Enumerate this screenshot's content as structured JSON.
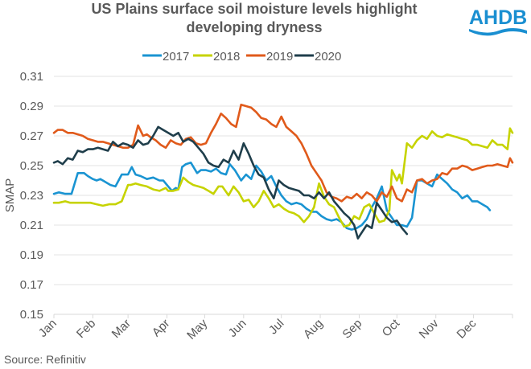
{
  "chart_data": {
    "type": "line",
    "title": [
      "US Plains surface soil moisture levels highlight",
      "developing dryness"
    ],
    "ylabel": "SMAP",
    "xlabel": "",
    "ylim": [
      0.15,
      0.31
    ],
    "yticks": [
      "0.31",
      "0.29",
      "0.27",
      "0.25",
      "0.23",
      "0.21",
      "0.19",
      "0.17",
      "0.15"
    ],
    "ytick_values": [
      0.31,
      0.29,
      0.27,
      0.25,
      0.23,
      0.21,
      0.19,
      0.17,
      0.15
    ],
    "x_unit": "day of year",
    "xlim": [
      1,
      366
    ],
    "categories": [
      "Jan",
      "Feb",
      "Mar",
      "Apr",
      "May",
      "Jun",
      "Jul",
      "Aug",
      "Sep",
      "Oct",
      "Nov",
      "Dec"
    ],
    "month_starts": [
      1,
      32,
      60,
      91,
      121,
      152,
      182,
      213,
      244,
      274,
      305,
      335
    ],
    "grid": true,
    "legend_position": "top",
    "series": [
      {
        "name": "2017",
        "color": "#1a94d2",
        "x": [
          1,
          5,
          10,
          15,
          20,
          25,
          28,
          32,
          35,
          38,
          42,
          46,
          50,
          55,
          60,
          63,
          66,
          70,
          75,
          80,
          85,
          88,
          92,
          95,
          98,
          100,
          103,
          106,
          110,
          115,
          118,
          122,
          126,
          130,
          134,
          138,
          141,
          145,
          150,
          154,
          158,
          162,
          166,
          170,
          174,
          178,
          182,
          186,
          190,
          194,
          198,
          202,
          206,
          210,
          214,
          218,
          222,
          226,
          230,
          234,
          238,
          242,
          246,
          250,
          254,
          258,
          262,
          266,
          270,
          274,
          278,
          282,
          286,
          290,
          294,
          298,
          302,
          306,
          310,
          314,
          318,
          322,
          326,
          330,
          334,
          338,
          342,
          346,
          348
        ],
        "y": [
          0.231,
          0.232,
          0.231,
          0.231,
          0.245,
          0.245,
          0.243,
          0.241,
          0.24,
          0.241,
          0.239,
          0.237,
          0.236,
          0.244,
          0.244,
          0.249,
          0.244,
          0.243,
          0.241,
          0.242,
          0.24,
          0.24,
          0.236,
          0.233,
          0.235,
          0.234,
          0.249,
          0.251,
          0.252,
          0.245,
          0.247,
          0.247,
          0.246,
          0.248,
          0.245,
          0.244,
          0.251,
          0.247,
          0.24,
          0.244,
          0.241,
          0.25,
          0.246,
          0.24,
          0.243,
          0.236,
          0.23,
          0.226,
          0.224,
          0.225,
          0.224,
          0.221,
          0.219,
          0.219,
          0.216,
          0.214,
          0.213,
          0.214,
          0.212,
          0.208,
          0.207,
          0.208,
          0.21,
          0.214,
          0.222,
          0.228,
          0.236,
          0.22,
          0.215,
          0.21,
          0.21,
          0.209,
          0.215,
          0.24,
          0.24,
          0.238,
          0.236,
          0.244,
          0.241,
          0.238,
          0.234,
          0.232,
          0.228,
          0.23,
          0.226,
          0.226,
          0.224,
          0.222,
          0.22
        ]
      },
      {
        "name": "2018",
        "color": "#c6d300",
        "x": [
          1,
          5,
          10,
          14,
          20,
          25,
          30,
          35,
          40,
          45,
          50,
          55,
          60,
          62,
          66,
          70,
          75,
          80,
          85,
          90,
          92,
          96,
          100,
          104,
          108,
          112,
          116,
          120,
          124,
          128,
          132,
          135,
          140,
          144,
          148,
          152,
          156,
          160,
          164,
          168,
          172,
          176,
          180,
          184,
          188,
          192,
          196,
          200,
          204,
          208,
          212,
          216,
          220,
          224,
          228,
          232,
          236,
          240,
          244,
          248,
          252,
          256,
          260,
          264,
          268,
          270,
          274,
          276,
          278,
          282,
          286,
          290,
          294,
          298,
          302,
          306,
          310,
          314,
          318,
          322,
          326,
          330,
          334,
          338,
          342,
          346,
          350,
          354,
          358,
          362,
          364,
          366
        ],
        "y": [
          0.225,
          0.225,
          0.226,
          0.225,
          0.225,
          0.225,
          0.225,
          0.224,
          0.223,
          0.224,
          0.224,
          0.226,
          0.237,
          0.237,
          0.238,
          0.237,
          0.236,
          0.234,
          0.233,
          0.235,
          0.233,
          0.233,
          0.234,
          0.242,
          0.239,
          0.237,
          0.236,
          0.235,
          0.233,
          0.231,
          0.236,
          0.236,
          0.23,
          0.236,
          0.232,
          0.226,
          0.227,
          0.222,
          0.226,
          0.233,
          0.228,
          0.222,
          0.224,
          0.221,
          0.219,
          0.218,
          0.216,
          0.212,
          0.216,
          0.222,
          0.238,
          0.229,
          0.224,
          0.222,
          0.215,
          0.209,
          0.21,
          0.216,
          0.214,
          0.222,
          0.224,
          0.218,
          0.212,
          0.213,
          0.22,
          0.247,
          0.24,
          0.244,
          0.238,
          0.265,
          0.262,
          0.267,
          0.27,
          0.268,
          0.273,
          0.27,
          0.269,
          0.271,
          0.27,
          0.269,
          0.268,
          0.267,
          0.264,
          0.264,
          0.263,
          0.262,
          0.267,
          0.264,
          0.264,
          0.261,
          0.275,
          0.272
        ]
      },
      {
        "name": "2019",
        "color": "#e05a1b",
        "x": [
          1,
          4,
          8,
          12,
          16,
          20,
          24,
          28,
          32,
          36,
          40,
          44,
          48,
          52,
          56,
          60,
          64,
          68,
          72,
          75,
          78,
          82,
          86,
          90,
          94,
          98,
          102,
          106,
          110,
          114,
          118,
          122,
          126,
          130,
          134,
          138,
          142,
          146,
          150,
          154,
          158,
          162,
          166,
          170,
          174,
          178,
          182,
          186,
          190,
          194,
          198,
          202,
          206,
          210,
          214,
          218,
          222,
          226,
          230,
          234,
          238,
          242,
          246,
          250,
          254,
          258,
          262,
          266,
          270,
          274,
          278,
          282,
          286,
          290,
          294,
          298,
          302,
          306,
          310,
          314,
          318,
          322,
          326,
          330,
          334,
          338,
          342,
          346,
          350,
          354,
          358,
          362,
          364,
          366
        ],
        "y": [
          0.272,
          0.274,
          0.274,
          0.272,
          0.272,
          0.271,
          0.27,
          0.268,
          0.267,
          0.266,
          0.266,
          0.265,
          0.264,
          0.263,
          0.262,
          0.262,
          0.264,
          0.277,
          0.27,
          0.271,
          0.269,
          0.267,
          0.264,
          0.262,
          0.267,
          0.265,
          0.264,
          0.268,
          0.269,
          0.265,
          0.264,
          0.265,
          0.272,
          0.278,
          0.285,
          0.282,
          0.278,
          0.276,
          0.291,
          0.29,
          0.289,
          0.286,
          0.282,
          0.281,
          0.278,
          0.276,
          0.283,
          0.276,
          0.273,
          0.27,
          0.265,
          0.258,
          0.25,
          0.245,
          0.24,
          0.232,
          0.229,
          0.228,
          0.226,
          0.229,
          0.228,
          0.231,
          0.228,
          0.232,
          0.23,
          0.226,
          0.232,
          0.229,
          0.236,
          0.228,
          0.226,
          0.234,
          0.232,
          0.24,
          0.241,
          0.238,
          0.24,
          0.241,
          0.245,
          0.244,
          0.248,
          0.248,
          0.25,
          0.249,
          0.247,
          0.248,
          0.249,
          0.25,
          0.25,
          0.251,
          0.25,
          0.249,
          0.255,
          0.252
        ]
      },
      {
        "name": "2020",
        "color": "#1f3e4b",
        "x": [
          1,
          4,
          8,
          12,
          16,
          20,
          24,
          28,
          32,
          36,
          40,
          44,
          48,
          52,
          56,
          60,
          64,
          68,
          72,
          76,
          80,
          84,
          88,
          92,
          96,
          100,
          104,
          108,
          112,
          116,
          120,
          124,
          128,
          132,
          136,
          140,
          144,
          148,
          152,
          156,
          160,
          164,
          168,
          172,
          176,
          180,
          184,
          188,
          192,
          196,
          200,
          204,
          208,
          212,
          216,
          220,
          224,
          228,
          232,
          236,
          240,
          243,
          246,
          250,
          254,
          258,
          262,
          266,
          270,
          274,
          278,
          282
        ],
        "y": [
          0.252,
          0.253,
          0.251,
          0.255,
          0.254,
          0.26,
          0.259,
          0.261,
          0.261,
          0.262,
          0.261,
          0.26,
          0.266,
          0.263,
          0.265,
          0.264,
          0.262,
          0.267,
          0.264,
          0.265,
          0.27,
          0.276,
          0.274,
          0.272,
          0.27,
          0.272,
          0.266,
          0.268,
          0.266,
          0.262,
          0.258,
          0.252,
          0.25,
          0.249,
          0.254,
          0.252,
          0.26,
          0.254,
          0.265,
          0.258,
          0.25,
          0.244,
          0.242,
          0.234,
          0.228,
          0.24,
          0.237,
          0.235,
          0.234,
          0.233,
          0.23,
          0.23,
          0.228,
          0.232,
          0.228,
          0.232,
          0.226,
          0.222,
          0.218,
          0.215,
          0.21,
          0.201,
          0.205,
          0.21,
          0.208,
          0.225,
          0.22,
          0.215,
          0.212,
          0.213,
          0.208,
          0.204
        ]
      }
    ],
    "source": "Source: Refinitiv"
  },
  "logo": {
    "text": "AHDB",
    "color": "#1a8fd1"
  }
}
